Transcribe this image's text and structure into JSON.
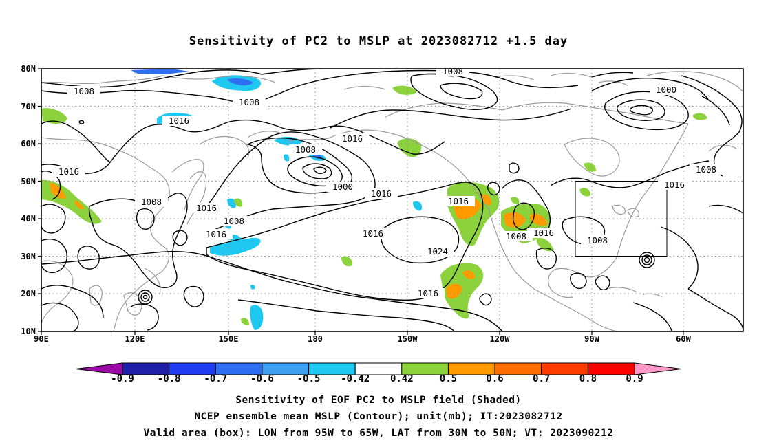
{
  "title": "Sensitivity of PC2 to MSLP at 2023082712 +1.5 day",
  "lat_labels": [
    "80N",
    "70N",
    "60N",
    "50N",
    "40N",
    "30N",
    "20N",
    "10N"
  ],
  "lon_labels": [
    "90E",
    "120E",
    "150E",
    "180",
    "150W",
    "120W",
    "90W",
    "60W"
  ],
  "contour_labels": {
    "c1008a": "1008",
    "c1008b": "1008",
    "c1008c": "1008",
    "c1000a": "1000",
    "c1016a": "1016",
    "c1016b": "1016",
    "c1008d": "1008",
    "c1000b": "1000",
    "c1016c": "1016",
    "c1016d": "1016",
    "c1016e": "1016",
    "c1008e": "1008",
    "c1016f": "1016",
    "c1016g": "1016",
    "c1016h": "1016",
    "c1024": "1024",
    "c1016i": "1016",
    "c1008f": "1008",
    "c1016j": "1016",
    "c1008g": "1008",
    "c1016k": "1016",
    "c1008h": "1008",
    "c1016l": "1016"
  },
  "colorbar": {
    "colors": [
      "#9b0aa6",
      "#1f1fa8",
      "#1f3cf0",
      "#2e6ef0",
      "#3f9ff0",
      "#1ec8f0",
      "#ffffff",
      "#8cd23c",
      "#ff9a00",
      "#ff6e00",
      "#ff3c00",
      "#ff0000",
      "#ff9ac8"
    ],
    "labels": [
      "-0.9",
      "-0.8",
      "-0.7",
      "-0.6",
      "-0.5",
      "-0.42",
      "0.42",
      "0.5",
      "0.6",
      "0.7",
      "0.8",
      "0.9"
    ]
  },
  "captions": {
    "line1": "Sensitivity of EOF PC2 to MSLP field (Shaded)",
    "line2": "NCEP ensemble mean MSLP (Contour); unit(mb); IT:2023082712",
    "line3": "Valid area (box): LON from 95W to 65W, LAT from 30N to 50N; VT: 2023090212"
  },
  "colors": {
    "positive_green": "#8cd23c",
    "positive_orange": "#ff9a00",
    "negative_cyan": "#1ec8f0",
    "negative_blue": "#2e6ef0",
    "coast": "#9a9a9a"
  }
}
